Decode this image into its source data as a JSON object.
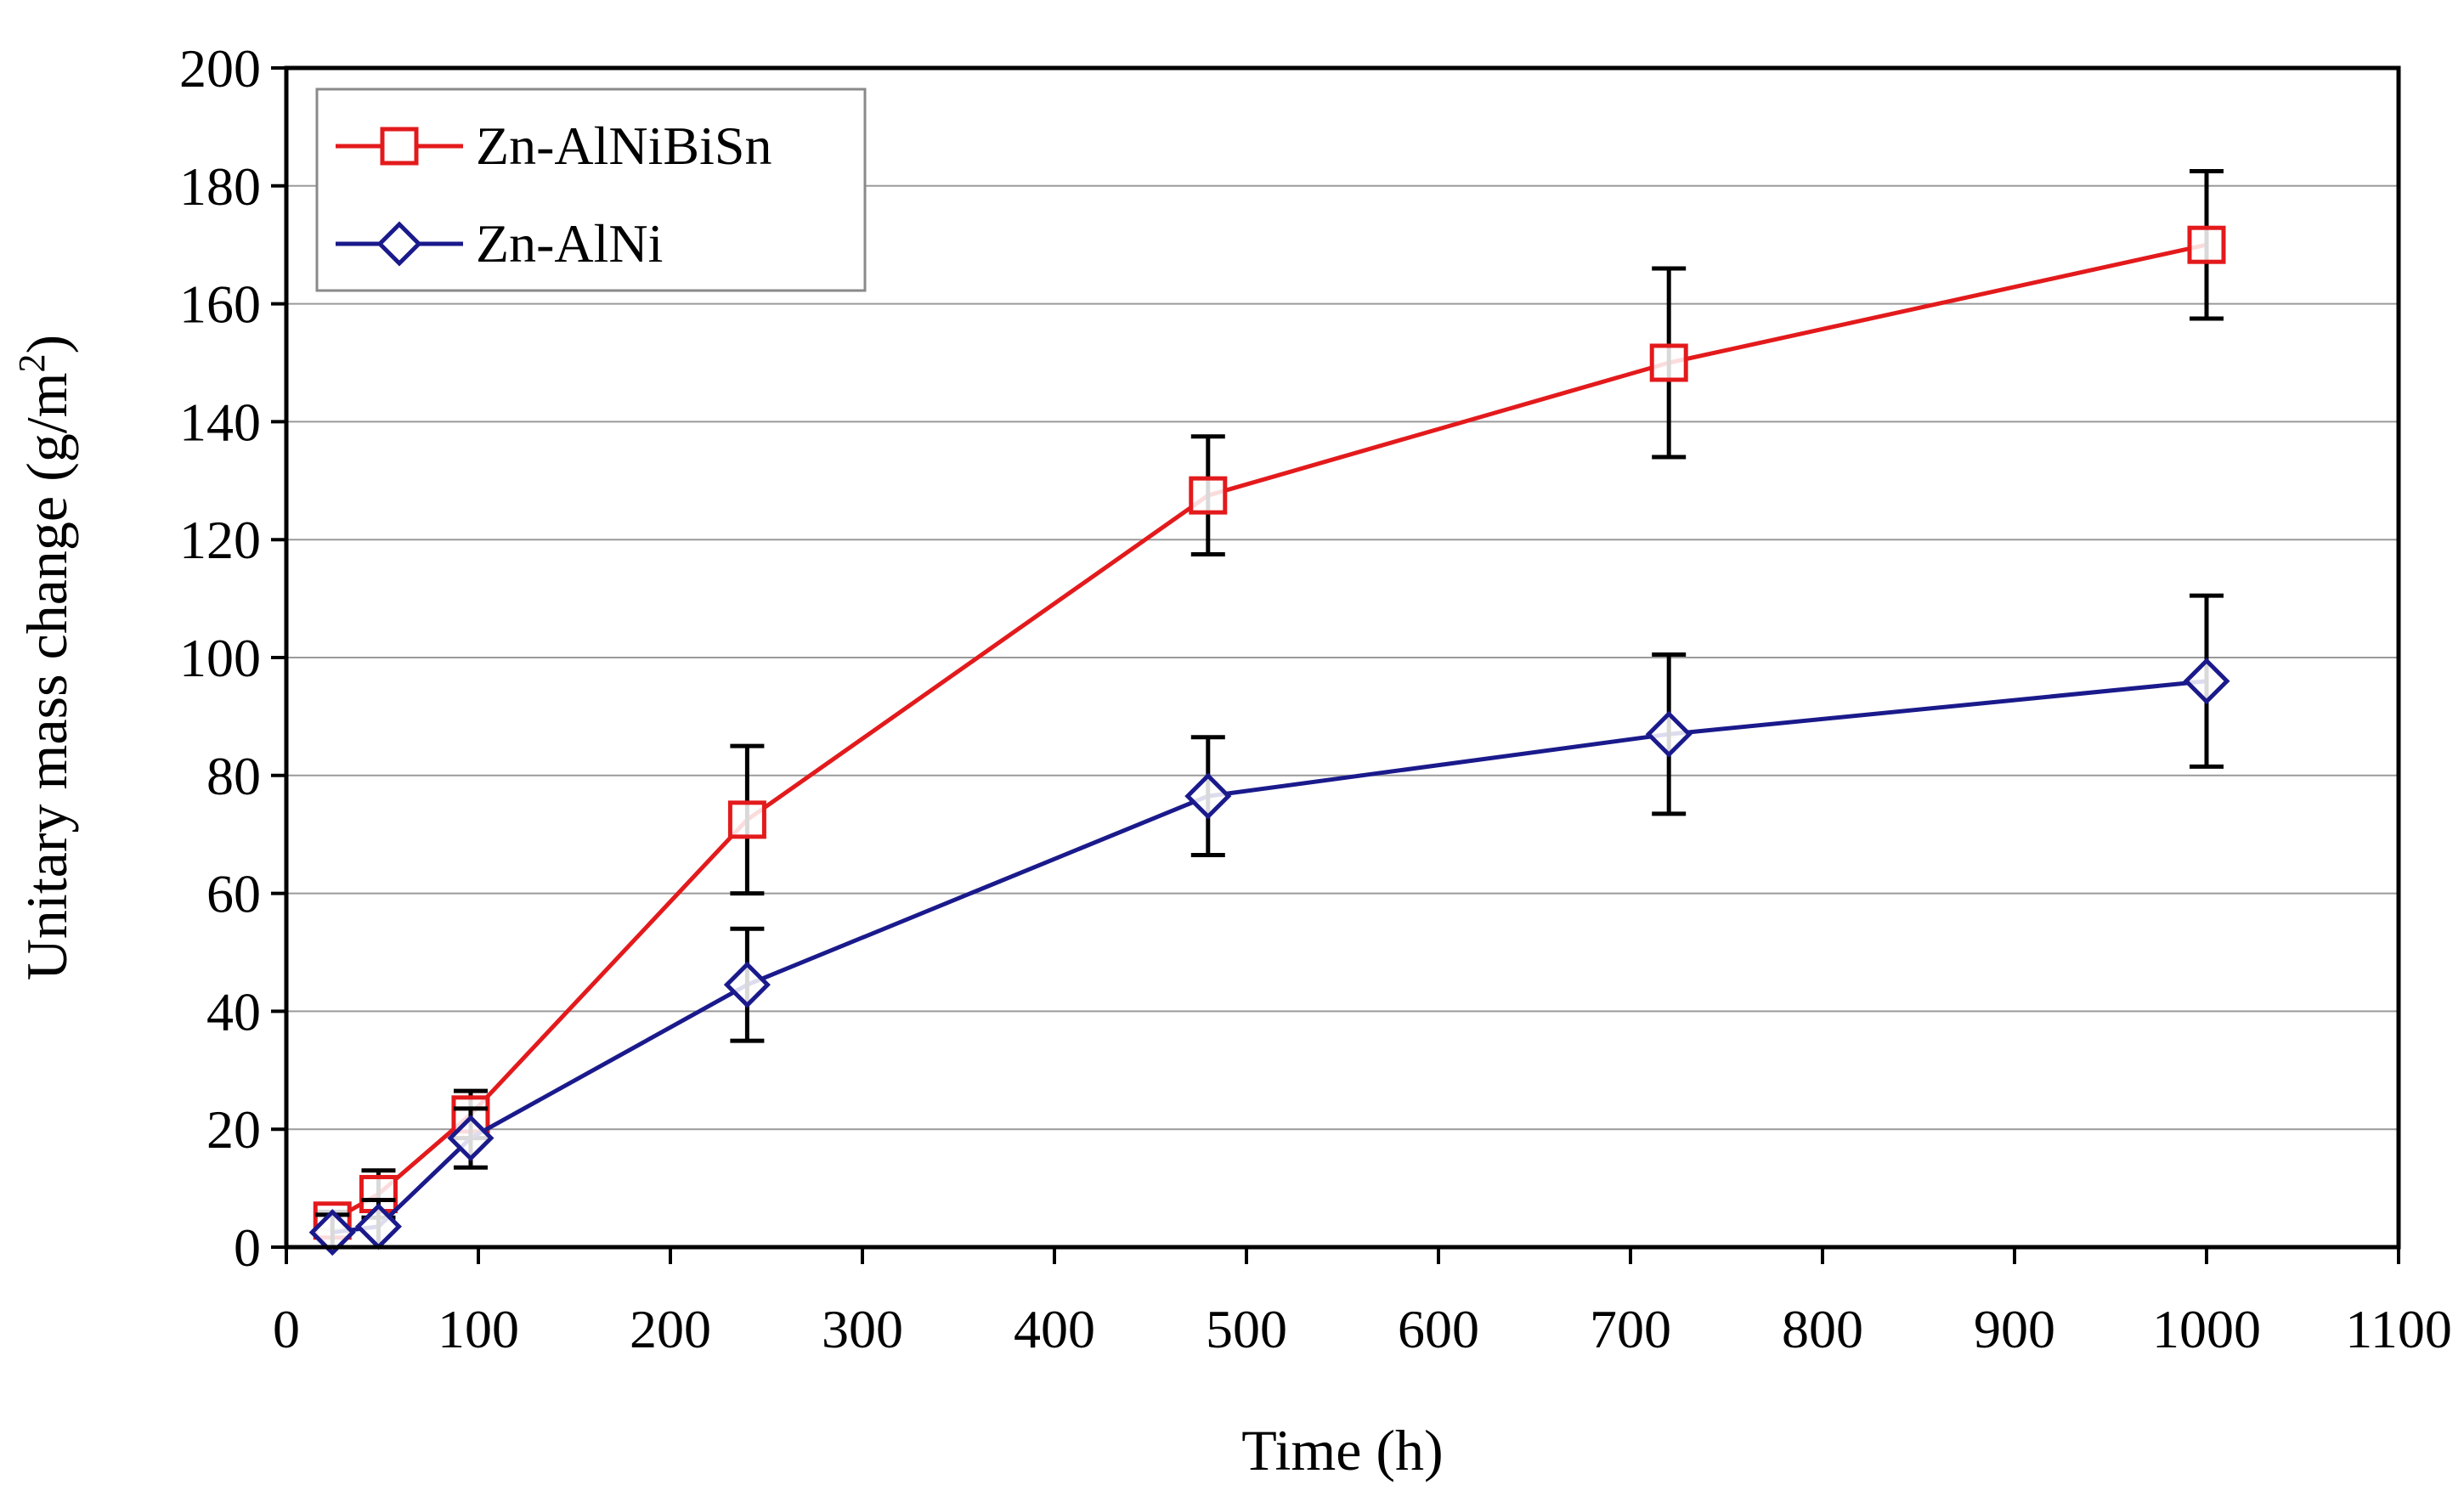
{
  "chart_data": {
    "type": "line",
    "title": "",
    "xlabel": "Time (h)",
    "ylabel": {
      "main": "Unitary mass change (g/m",
      "superscript": "2",
      "suffix": ")"
    },
    "xlim": [
      0,
      1100
    ],
    "ylim": [
      0,
      200
    ],
    "xticks": [
      "0",
      "100",
      "200",
      "300",
      "400",
      "500",
      "600",
      "700",
      "800",
      "900",
      "1000",
      "1100"
    ],
    "yticks": [
      "0",
      "20",
      "40",
      "60",
      "80",
      "100",
      "120",
      "140",
      "160",
      "180",
      "200"
    ],
    "grid": "horizontal",
    "legend_position": "top-left",
    "series": [
      {
        "name": "Zn-AlNiBiSn",
        "color": "#e31a1c",
        "marker": "square",
        "x": [
          24,
          48,
          96,
          240,
          480,
          720,
          1000
        ],
        "y": [
          4.5,
          9,
          22.5,
          72.5,
          127.5,
          150,
          170
        ],
        "err": [
          1.5,
          4,
          4,
          12.5,
          10,
          16,
          12.5
        ]
      },
      {
        "name": "Zn-AlNi",
        "color": "#1a1a8c",
        "marker": "diamond",
        "x": [
          24,
          48,
          96,
          240,
          480,
          720,
          1000
        ],
        "y": [
          2.5,
          3.5,
          18.5,
          44.5,
          76.5,
          87,
          96
        ],
        "err": [
          3,
          4.5,
          5,
          9.5,
          10,
          13.5,
          14.5
        ]
      }
    ]
  }
}
